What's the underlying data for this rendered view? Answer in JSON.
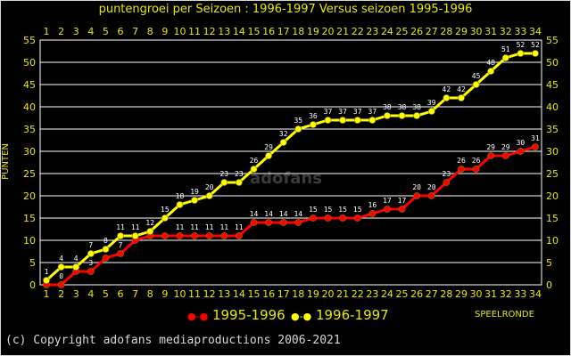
{
  "watermark": "adofans",
  "legend": {
    "red_label": "1995-1996",
    "yellow_label": "1996-1997"
  },
  "copyright": "(c) Copyright adofans mediaproductions 2006-2021",
  "colors": {
    "grid": "#ffffff",
    "axis_text": "#e8e800",
    "series_1995": "#ff0000",
    "series_1996": "#ffff00",
    "background": "#000000"
  },
  "chart_data": {
    "type": "line",
    "title": "puntengroei per Seizoen : 1996-1997 Versus seizoen 1995-1996",
    "xlabel": "SPEELRONDE",
    "ylabel": "PUNTEN",
    "x": [
      1,
      2,
      3,
      4,
      5,
      6,
      7,
      8,
      9,
      10,
      11,
      12,
      13,
      14,
      15,
      16,
      17,
      18,
      19,
      20,
      21,
      22,
      23,
      24,
      25,
      26,
      27,
      28,
      29,
      30,
      31,
      32,
      33,
      34
    ],
    "ylim": [
      0,
      55
    ],
    "yticks": [
      0,
      5,
      10,
      15,
      20,
      25,
      30,
      35,
      40,
      45,
      50,
      55
    ],
    "grid": true,
    "legend_position": "bottom",
    "series": [
      {
        "name": "1995-1996",
        "color": "#ff0000",
        "values": [
          0,
          0,
          3,
          3,
          6,
          7,
          10,
          11,
          11,
          11,
          11,
          11,
          11,
          11,
          14,
          14,
          14,
          14,
          15,
          15,
          15,
          15,
          16,
          17,
          17,
          20,
          20,
          23,
          26,
          26,
          29,
          29,
          30,
          31
        ],
        "labels": [
          "",
          "0",
          "",
          "3",
          "6",
          "7",
          "",
          "",
          "",
          "11",
          "11",
          "11",
          "11",
          "11",
          "14",
          "14",
          "14",
          "14",
          "15",
          "15",
          "15",
          "15",
          "16",
          "17",
          "17",
          "20",
          "20",
          "23",
          "26",
          "26",
          "29",
          "29",
          "30",
          "31"
        ]
      },
      {
        "name": "1996-1997",
        "color": "#ffff00",
        "values": [
          1,
          4,
          4,
          7,
          8,
          11,
          11,
          12,
          15,
          18,
          19,
          20,
          23,
          23,
          26,
          29,
          32,
          35,
          36,
          37,
          37,
          37,
          37,
          38,
          38,
          38,
          39,
          42,
          42,
          45,
          48,
          51,
          52,
          52
        ],
        "labels": [
          "1",
          "4",
          "4",
          "7",
          "8",
          "11",
          "11",
          "12",
          "15",
          "18",
          "19",
          "20",
          "23",
          "23",
          "26",
          "29",
          "32",
          "35",
          "36",
          "37",
          "37",
          "37",
          "37",
          "38",
          "38",
          "38",
          "39",
          "42",
          "42",
          "45",
          "48",
          "51",
          "52",
          "52"
        ]
      }
    ]
  }
}
